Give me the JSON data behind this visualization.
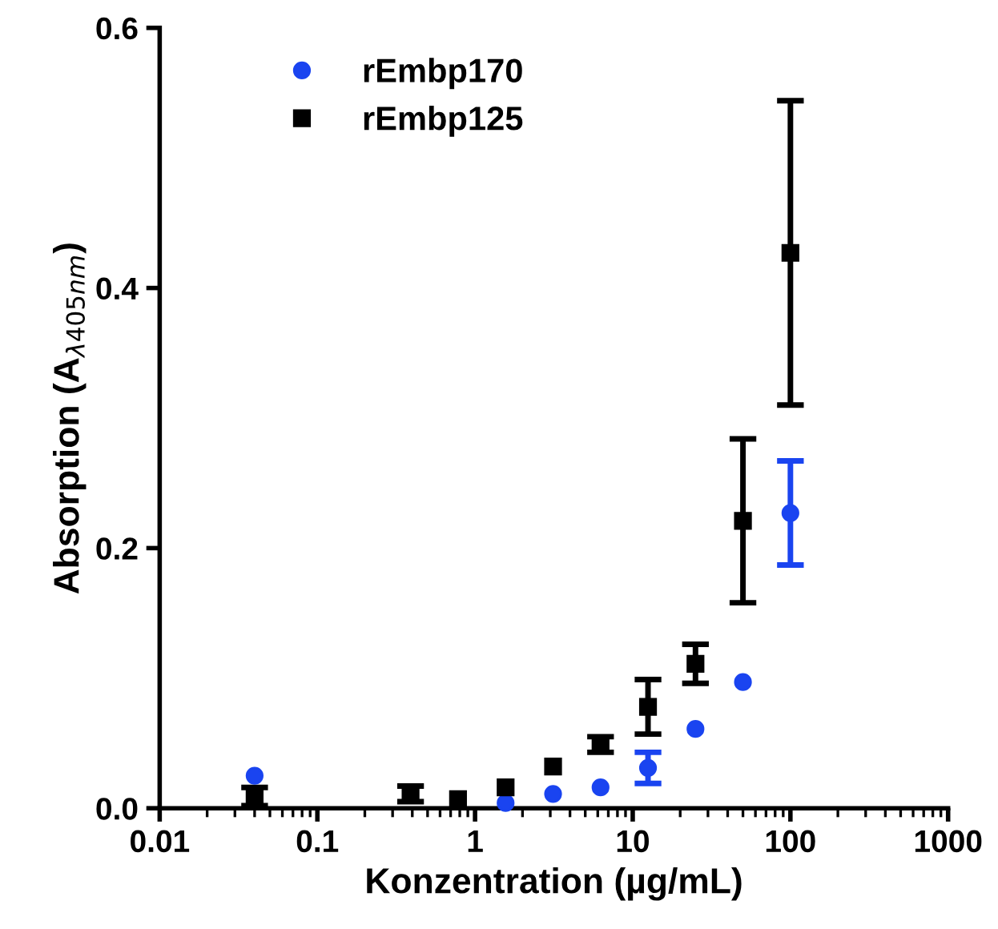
{
  "chart_data": {
    "type": "scatter",
    "xlabel": "Konzentration (µg/mL)",
    "ylabel": "Absorption (A$_{λ405nm}$)",
    "log": "x",
    "xlim": [
      0.01,
      1000
    ],
    "xticks": [
      0.01,
      0.1,
      1,
      10,
      100,
      1000
    ],
    "ylim": [
      0,
      0.6
    ],
    "yticks": [
      {
        "value": 0,
        "label": "0.0"
      },
      {
        "value": 0.2,
        "label": "0.2"
      },
      {
        "value": 0.4,
        "label": "0.4"
      },
      {
        "value": 0.6,
        "label": "0.6"
      }
    ],
    "grid": false,
    "legend": "top left",
    "series": [
      {
        "name": "rEmbp170",
        "color": "#1a44f0",
        "marker": "circle",
        "x": [
          0.04,
          0.78,
          1.5625,
          3.125,
          6.25,
          12.5,
          25,
          50,
          100
        ],
        "values": [
          0.025,
          null,
          0.004,
          0.011,
          0.016,
          0.031,
          0.061,
          0.097,
          0.227
        ],
        "errors": [
          null,
          null,
          null,
          null,
          null,
          0.012,
          null,
          null,
          0.04
        ]
      },
      {
        "name": "rEmbp125",
        "color": "#000000",
        "marker": "square",
        "x": [
          0.04,
          0.39,
          0.78,
          1.5625,
          3.125,
          6.25,
          12.5,
          25,
          50,
          100
        ],
        "values": [
          0.009,
          0.011,
          0.007,
          0.016,
          0.032,
          0.049,
          0.078,
          0.111,
          0.221,
          0.427
        ],
        "errors": [
          0.007,
          0.006,
          null,
          null,
          null,
          0.006,
          0.021,
          0.015,
          0.063,
          0.117
        ]
      }
    ]
  }
}
